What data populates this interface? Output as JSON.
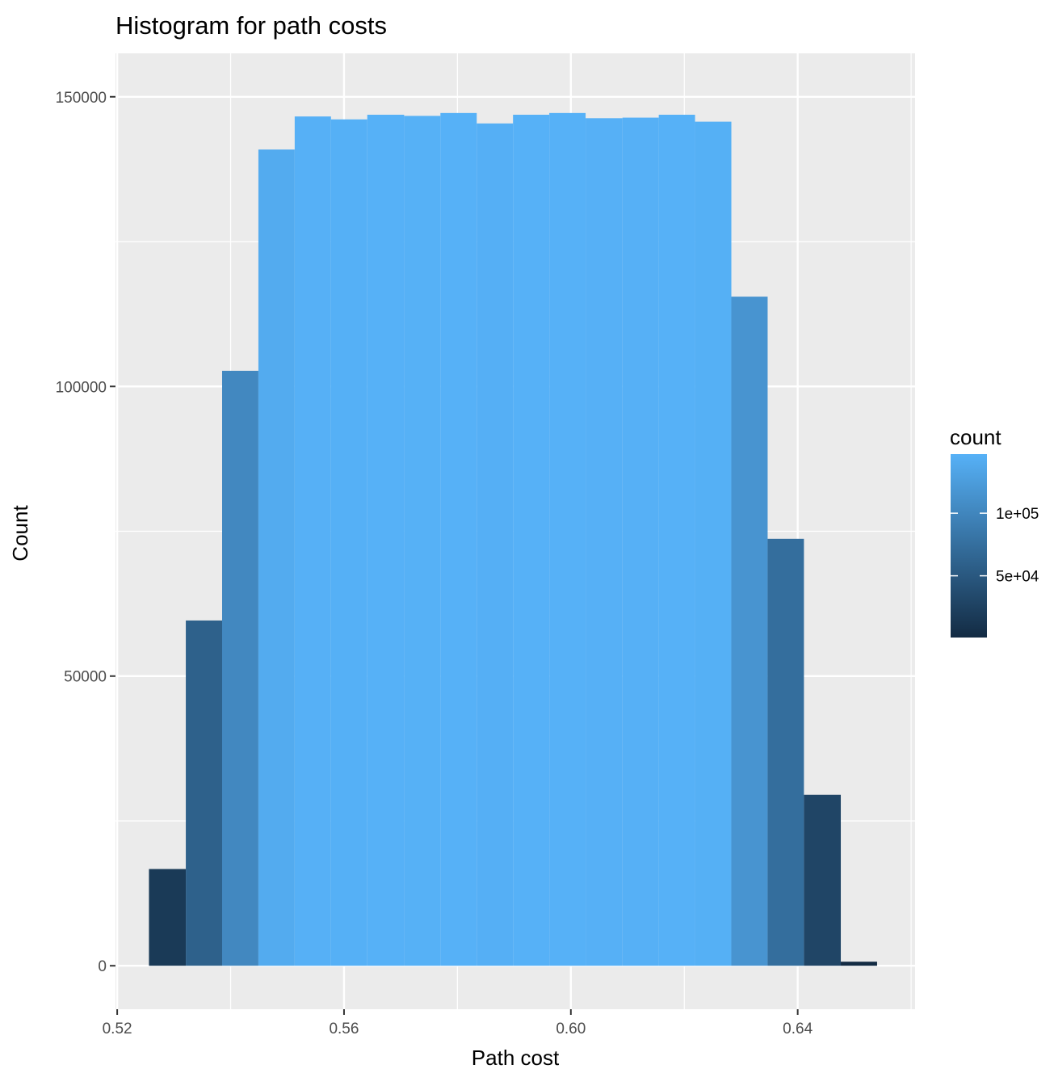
{
  "chart_data": {
    "type": "bar",
    "subtype": "histogram",
    "title": "Histogram for path costs",
    "xlabel": "Path cost",
    "ylabel": "Count",
    "xlim": [
      0.5197,
      0.6607
    ],
    "ylim": [
      -7500,
      157500
    ],
    "x_ticks": [
      0.52,
      0.56,
      0.6,
      0.64
    ],
    "x_tick_labels": [
      "0.52",
      "0.56",
      "0.60",
      "0.64"
    ],
    "y_ticks": [
      0,
      50000,
      100000,
      150000
    ],
    "y_tick_labels": [
      "0",
      "50000",
      "100000",
      "150000"
    ],
    "grid": true,
    "bins": [
      {
        "start": 0.5256,
        "end": 0.5321,
        "value": 16700
      },
      {
        "start": 0.5321,
        "end": 0.5385,
        "value": 59600
      },
      {
        "start": 0.5385,
        "end": 0.5449,
        "value": 102700
      },
      {
        "start": 0.5449,
        "end": 0.5513,
        "value": 140900
      },
      {
        "start": 0.5513,
        "end": 0.5577,
        "value": 146600
      },
      {
        "start": 0.5577,
        "end": 0.5641,
        "value": 146100
      },
      {
        "start": 0.5641,
        "end": 0.5706,
        "value": 146900
      },
      {
        "start": 0.5706,
        "end": 0.577,
        "value": 146700
      },
      {
        "start": 0.577,
        "end": 0.5834,
        "value": 147200
      },
      {
        "start": 0.5834,
        "end": 0.5898,
        "value": 145400
      },
      {
        "start": 0.5898,
        "end": 0.5962,
        "value": 146900
      },
      {
        "start": 0.5962,
        "end": 0.6026,
        "value": 147200
      },
      {
        "start": 0.6026,
        "end": 0.6091,
        "value": 146300
      },
      {
        "start": 0.6091,
        "end": 0.6155,
        "value": 146400
      },
      {
        "start": 0.6155,
        "end": 0.6219,
        "value": 146900
      },
      {
        "start": 0.6219,
        "end": 0.6283,
        "value": 145700
      },
      {
        "start": 0.6283,
        "end": 0.6347,
        "value": 115500
      },
      {
        "start": 0.6347,
        "end": 0.6411,
        "value": 73700
      },
      {
        "start": 0.6411,
        "end": 0.6476,
        "value": 29500
      },
      {
        "start": 0.6476,
        "end": 0.654,
        "value": 700
      }
    ],
    "legend": {
      "title": "count",
      "position": "right",
      "type": "colorbar",
      "range": [
        700,
        147200
      ],
      "breaks": [
        50000,
        100000
      ],
      "labels": [
        "5e+04",
        "1e+05"
      ],
      "colors": [
        "#132b43",
        "#56b1f7"
      ]
    },
    "colors": {
      "panel_background": "#ebebeb",
      "grid_major": "#ffffff",
      "low": "#132b43",
      "high": "#56b1f7"
    }
  }
}
